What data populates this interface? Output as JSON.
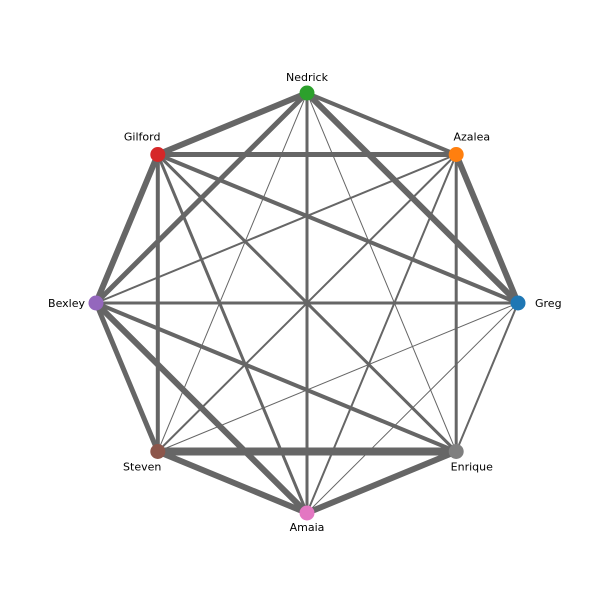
{
  "graph": {
    "edge_color": "#666666",
    "nodes": [
      {
        "id": "greg",
        "name": "Greg",
        "color": "#1f77b4"
      },
      {
        "id": "azalea",
        "name": "Azalea",
        "color": "#ff7f0e"
      },
      {
        "id": "nedrick",
        "name": "Nedrick",
        "color": "#2ca02c"
      },
      {
        "id": "gilford",
        "name": "Gilford",
        "color": "#d62728"
      },
      {
        "id": "bexley",
        "name": "Bexley",
        "color": "#9467bd"
      },
      {
        "id": "steven",
        "name": "Steven",
        "color": "#8c564b"
      },
      {
        "id": "amaia",
        "name": "Amaia",
        "color": "#e377c2"
      },
      {
        "id": "enrique",
        "name": "Enrique",
        "color": "#7f7f7f"
      }
    ],
    "edges": [
      {
        "source": "nedrick",
        "target": "gilford",
        "weight": 6
      },
      {
        "source": "nedrick",
        "target": "azalea",
        "weight": 4
      },
      {
        "source": "nedrick",
        "target": "greg",
        "weight": 6
      },
      {
        "source": "nedrick",
        "target": "bexley",
        "weight": 5
      },
      {
        "source": "nedrick",
        "target": "steven",
        "weight": 1
      },
      {
        "source": "nedrick",
        "target": "amaia",
        "weight": 3
      },
      {
        "source": "nedrick",
        "target": "enrique",
        "weight": 1
      },
      {
        "source": "gilford",
        "target": "azalea",
        "weight": 5
      },
      {
        "source": "gilford",
        "target": "greg",
        "weight": 4
      },
      {
        "source": "gilford",
        "target": "bexley",
        "weight": 6
      },
      {
        "source": "gilford",
        "target": "steven",
        "weight": 4
      },
      {
        "source": "gilford",
        "target": "amaia",
        "weight": 3
      },
      {
        "source": "gilford",
        "target": "enrique",
        "weight": 3
      },
      {
        "source": "azalea",
        "target": "greg",
        "weight": 6
      },
      {
        "source": "azalea",
        "target": "bexley",
        "weight": 2
      },
      {
        "source": "azalea",
        "target": "steven",
        "weight": 2
      },
      {
        "source": "azalea",
        "target": "amaia",
        "weight": 2
      },
      {
        "source": "azalea",
        "target": "enrique",
        "weight": 3
      },
      {
        "source": "greg",
        "target": "bexley",
        "weight": 3
      },
      {
        "source": "greg",
        "target": "steven",
        "weight": 1
      },
      {
        "source": "greg",
        "target": "amaia",
        "weight": 1
      },
      {
        "source": "greg",
        "target": "enrique",
        "weight": 2
      },
      {
        "source": "bexley",
        "target": "steven",
        "weight": 5
      },
      {
        "source": "bexley",
        "target": "amaia",
        "weight": 6
      },
      {
        "source": "bexley",
        "target": "enrique",
        "weight": 4
      },
      {
        "source": "steven",
        "target": "amaia",
        "weight": 6
      },
      {
        "source": "steven",
        "target": "enrique",
        "weight": 8
      },
      {
        "source": "amaia",
        "target": "enrique",
        "weight": 6
      }
    ]
  }
}
